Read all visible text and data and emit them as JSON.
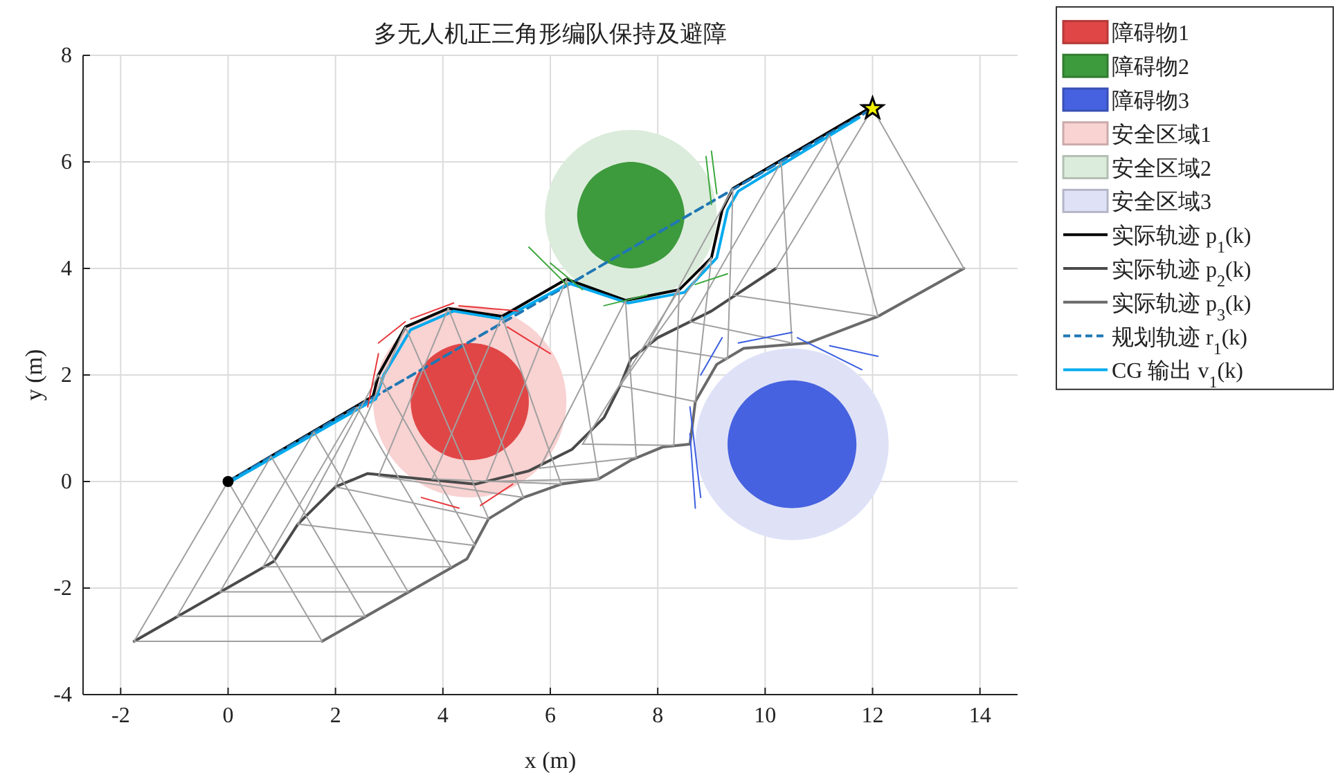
{
  "chart_data": {
    "type": "line",
    "title": "多无人机正三角形编队保持及避障",
    "xlabel": "x (m)",
    "ylabel": "y (m)",
    "xlim": [
      -2.7,
      14.7
    ],
    "ylim": [
      -4,
      8
    ],
    "xticks": [
      -2,
      0,
      2,
      4,
      6,
      8,
      10,
      12,
      14
    ],
    "yticks": [
      -4,
      -2,
      0,
      2,
      4,
      6,
      8
    ],
    "grid": true,
    "legend": "top right",
    "series": [
      {
        "name": "障碍物1",
        "type": "area",
        "color": "#e04646",
        "x": [
          5.6,
          5.52,
          5.28,
          4.92,
          4.5,
          4.08,
          3.72,
          3.48,
          3.4,
          3.48,
          3.72,
          4.08,
          4.5,
          4.92,
          5.28,
          5.52
        ],
        "values": [
          1.5,
          1.92,
          2.28,
          2.52,
          2.6,
          2.52,
          2.28,
          1.92,
          1.5,
          1.08,
          0.72,
          0.48,
          0.4,
          0.48,
          0.72,
          1.08
        ]
      },
      {
        "name": "障碍物2",
        "type": "area",
        "color": "#3d9a3d",
        "x": [
          8.5,
          8.42,
          8.21,
          7.88,
          7.5,
          7.12,
          6.79,
          6.58,
          6.5,
          6.58,
          6.79,
          7.12,
          7.5,
          7.88,
          8.21,
          8.42
        ],
        "values": [
          5,
          5.38,
          5.71,
          5.92,
          6,
          5.92,
          5.71,
          5.38,
          5,
          4.62,
          4.29,
          4.08,
          4,
          4.08,
          4.29,
          4.62
        ]
      },
      {
        "name": "障碍物3",
        "type": "area",
        "color": "#4662e0",
        "x": [
          11.7,
          11.61,
          11.35,
          10.96,
          10.5,
          10.04,
          9.65,
          9.39,
          9.3,
          9.39,
          9.65,
          10.04,
          10.5,
          10.96,
          11.35,
          11.61
        ],
        "values": [
          0.7,
          1.16,
          1.55,
          1.81,
          1.9,
          1.81,
          1.55,
          1.16,
          0.7,
          0.24,
          -0.15,
          -0.41,
          -0.5,
          -0.41,
          -0.15,
          0.24
        ]
      },
      {
        "name": "安全区域1",
        "type": "area",
        "color": "#f9d2d2",
        "x": [
          6.3,
          6.16,
          5.77,
          5.19,
          4.5,
          3.81,
          3.23,
          2.84,
          2.7,
          2.84,
          3.23,
          3.81,
          4.5,
          5.19,
          5.77,
          6.16
        ],
        "values": [
          1.5,
          2.19,
          2.77,
          3.16,
          3.3,
          3.16,
          2.77,
          2.19,
          1.5,
          0.81,
          0.23,
          -0.16,
          -0.3,
          -0.16,
          0.23,
          0.81
        ]
      },
      {
        "name": "安全区域2",
        "type": "area",
        "color": "#dcecdc",
        "x": [
          9.1,
          8.98,
          8.63,
          8.11,
          7.5,
          6.89,
          6.37,
          6.02,
          5.9,
          6.02,
          6.37,
          6.89,
          7.5,
          8.11,
          8.63,
          8.98
        ],
        "values": [
          5,
          5.61,
          6.13,
          6.48,
          6.6,
          6.48,
          6.13,
          5.61,
          5,
          4.39,
          3.87,
          3.52,
          3.4,
          3.52,
          3.87,
          4.39
        ]
      },
      {
        "name": "安全区域3",
        "type": "area",
        "color": "#dfe2f7",
        "x": [
          12.3,
          12.16,
          11.77,
          11.19,
          10.5,
          9.81,
          9.23,
          8.84,
          8.7,
          8.84,
          9.23,
          9.81,
          10.5,
          11.19,
          11.77,
          12.16
        ],
        "values": [
          0.7,
          1.39,
          1.97,
          2.36,
          2.5,
          2.36,
          1.97,
          1.39,
          0.7,
          0.01,
          -0.57,
          -0.96,
          -1.1,
          -0.96,
          -0.57,
          0.01
        ]
      },
      {
        "name": "实际轨迹 p$_{1}$(k)",
        "color": "#000000",
        "x": [
          0,
          2.7,
          2.8,
          3.3,
          4.1,
          5.1,
          6.3,
          7.4,
          8.4,
          9.0,
          9.2,
          9.4,
          11.93,
          12
        ],
        "values": [
          0,
          1.6,
          2.0,
          2.9,
          3.25,
          3.1,
          3.8,
          3.4,
          3.6,
          4.2,
          5.1,
          5.5,
          7.0,
          7
        ]
      },
      {
        "name": "实际轨迹 p$_{2}$(k)",
        "color": "#4a4a4a",
        "x": [
          -1.75,
          0.85,
          1.3,
          2.0,
          2.6,
          3.6,
          4.6,
          5.6,
          6.4,
          7.0,
          7.3,
          7.5,
          8.0,
          9.0,
          10.2
        ],
        "values": [
          -3,
          -1.5,
          -0.8,
          -0.1,
          0.15,
          0.05,
          -0.05,
          0.2,
          0.6,
          1.2,
          1.8,
          2.3,
          2.7,
          3.2,
          4.0
        ]
      },
      {
        "name": "实际轨迹 p$_{3}$(k)",
        "color": "#6a6a6a",
        "x": [
          1.75,
          4.45,
          4.85,
          5.5,
          6.2,
          6.9,
          7.5,
          8.1,
          8.6,
          8.7,
          9.1,
          9.6,
          10.8,
          12.1,
          13.7
        ],
        "values": [
          -3,
          -1.45,
          -0.7,
          -0.3,
          -0.05,
          0.05,
          0.4,
          0.65,
          0.7,
          1.5,
          2.2,
          2.5,
          2.6,
          3.1,
          4.0
        ]
      },
      {
        "name": "规划轨迹 r$_{1}$(k)",
        "line_style": "dashed",
        "color": "#1f77b4",
        "x": [
          0,
          12
        ],
        "values": [
          0,
          7
        ]
      },
      {
        "name": "CG 输出 v$_{1}$(k)",
        "color": "#00aaee",
        "x": [
          0,
          2.75,
          2.9,
          3.4,
          4.2,
          5.1,
          6.35,
          7.45,
          8.5,
          9.1,
          9.3,
          9.5,
          11.75
        ],
        "values": [
          -0.03,
          1.55,
          2.0,
          2.85,
          3.2,
          3.05,
          3.72,
          3.35,
          3.55,
          4.2,
          5.1,
          5.45,
          6.83
        ]
      },
      {
        "color": "#a0a0a0",
        "x": [
          -1.75,
          0,
          1.75
        ],
        "values": [
          -3,
          0,
          -3
        ]
      },
      {
        "color": "#a0a0a0",
        "x": [
          -1.75,
          1.75
        ],
        "values": [
          -3,
          -3
        ]
      },
      {
        "color": "#a0a0a0",
        "x": [
          -0.95,
          0.8,
          2.55
        ],
        "values": [
          -2.53,
          0.47,
          -2.53
        ]
      },
      {
        "color": "#a0a0a0",
        "x": [
          -0.95,
          2.55
        ],
        "values": [
          -2.53,
          -2.53
        ]
      },
      {
        "color": "#a0a0a0",
        "x": [
          -0.15,
          1.6,
          3.35
        ],
        "values": [
          -2.07,
          0.93,
          -2.07
        ]
      },
      {
        "color": "#a0a0a0",
        "x": [
          -0.15,
          3.35
        ],
        "values": [
          -2.07,
          -2.07
        ]
      },
      {
        "color": "#a0a0a0",
        "x": [
          0.65,
          2.4,
          4.15
        ],
        "values": [
          -1.6,
          1.4,
          -1.6
        ]
      },
      {
        "color": "#a0a0a0",
        "x": [
          0.65,
          4.15
        ],
        "values": [
          -1.6,
          -1.6
        ]
      },
      {
        "color": "#a0a0a0",
        "x": [
          1.3,
          2.8,
          4.6
        ],
        "values": [
          -0.8,
          2.0,
          -1.2
        ]
      },
      {
        "color": "#a0a0a0",
        "x": [
          1.3,
          4.6
        ],
        "values": [
          -0.8,
          -1.2
        ]
      },
      {
        "color": "#a0a0a0",
        "x": [
          2.0,
          3.3,
          4.85
        ],
        "values": [
          -0.1,
          2.9,
          -0.7
        ]
      },
      {
        "color": "#a0a0a0",
        "x": [
          2.0,
          4.85
        ],
        "values": [
          -0.1,
          -0.7
        ]
      },
      {
        "color": "#a0a0a0",
        "x": [
          2.8,
          4.1,
          5.5
        ],
        "values": [
          0.1,
          3.25,
          -0.3
        ]
      },
      {
        "color": "#a0a0a0",
        "x": [
          2.8,
          5.5
        ],
        "values": [
          0.1,
          -0.3
        ]
      },
      {
        "color": "#a0a0a0",
        "x": [
          3.8,
          5.1,
          6.2
        ],
        "values": [
          0.05,
          3.1,
          -0.05
        ]
      },
      {
        "color": "#a0a0a0",
        "x": [
          3.8,
          6.2
        ],
        "values": [
          0.05,
          -0.05
        ]
      },
      {
        "color": "#a0a0a0",
        "x": [
          4.8,
          6.3,
          6.9
        ],
        "values": [
          0.0,
          3.8,
          0.05
        ]
      },
      {
        "color": "#a0a0a0",
        "x": [
          4.8,
          6.9
        ],
        "values": [
          0.0,
          0.05
        ]
      },
      {
        "color": "#a0a0a0",
        "x": [
          5.8,
          7.4,
          7.6
        ],
        "values": [
          0.25,
          3.4,
          0.45
        ]
      },
      {
        "color": "#a0a0a0",
        "x": [
          5.8,
          7.6
        ],
        "values": [
          0.25,
          0.45
        ]
      },
      {
        "color": "#a0a0a0",
        "x": [
          6.6,
          8.4,
          8.3
        ],
        "values": [
          0.7,
          3.6,
          0.68
        ]
      },
      {
        "color": "#a0a0a0",
        "x": [
          6.6,
          8.3
        ],
        "values": [
          0.7,
          0.68
        ]
      },
      {
        "color": "#a0a0a0",
        "x": [
          7.3,
          9.0,
          8.7
        ],
        "values": [
          1.8,
          4.2,
          1.5
        ]
      },
      {
        "color": "#a0a0a0",
        "x": [
          7.3,
          8.7
        ],
        "values": [
          1.8,
          1.5
        ]
      },
      {
        "color": "#a0a0a0",
        "x": [
          7.8,
          9.4,
          9.3
        ],
        "values": [
          2.55,
          5.5,
          2.3
        ]
      },
      {
        "color": "#a0a0a0",
        "x": [
          7.8,
          9.3
        ],
        "values": [
          2.55,
          2.3
        ]
      },
      {
        "color": "#a0a0a0",
        "x": [
          8.6,
          10.3,
          10.5
        ],
        "values": [
          3.0,
          6.0,
          2.6
        ]
      },
      {
        "color": "#a0a0a0",
        "x": [
          8.6,
          10.5
        ],
        "values": [
          3.0,
          2.6
        ]
      },
      {
        "color": "#a0a0a0",
        "x": [
          9.4,
          11.2,
          12.1
        ],
        "values": [
          3.5,
          6.5,
          3.1
        ]
      },
      {
        "color": "#a0a0a0",
        "x": [
          9.4,
          12.1
        ],
        "values": [
          3.5,
          3.1
        ]
      },
      {
        "color": "#a0a0a0",
        "x": [
          10.2,
          12,
          13.7
        ],
        "values": [
          4.0,
          7,
          4.0
        ]
      },
      {
        "color": "#a0a0a0",
        "x": [
          10.2,
          13.7
        ],
        "values": [
          4.0,
          4.0
        ]
      },
      {
        "color": "#e8383c",
        "x": [
          2.6,
          2.8
        ],
        "values": [
          1.4,
          2.4
        ]
      },
      {
        "color": "#e8383c",
        "x": [
          2.8,
          3.3
        ],
        "values": [
          2.6,
          3.0
        ]
      },
      {
        "color": "#e8383c",
        "x": [
          3.4,
          4.2
        ],
        "values": [
          3.05,
          3.35
        ]
      },
      {
        "color": "#e8383c",
        "x": [
          4.3,
          5.4
        ],
        "values": [
          3.3,
          3.2
        ]
      },
      {
        "color": "#e8383c",
        "x": [
          5.2,
          6.0
        ],
        "values": [
          2.9,
          2.4
        ]
      },
      {
        "color": "#e8383c",
        "x": [
          3.6,
          4.3
        ],
        "values": [
          -0.3,
          -0.5
        ]
      },
      {
        "color": "#e8383c",
        "x": [
          4.7,
          5.3
        ],
        "values": [
          -0.45,
          -0.05
        ]
      },
      {
        "color": "#3ea83e",
        "x": [
          5.6,
          6.3
        ],
        "values": [
          4.4,
          3.7
        ]
      },
      {
        "color": "#3ea83e",
        "x": [
          6.0,
          6.6
        ],
        "values": [
          4.1,
          3.6
        ]
      },
      {
        "color": "#3ea83e",
        "x": [
          7.0,
          7.8
        ],
        "values": [
          3.3,
          3.5
        ]
      },
      {
        "color": "#3ea83e",
        "x": [
          8.7,
          9.3
        ],
        "values": [
          3.7,
          3.9
        ]
      },
      {
        "color": "#3ea83e",
        "x": [
          9.0,
          8.9
        ],
        "values": [
          5.2,
          6.1
        ]
      },
      {
        "color": "#3ea83e",
        "x": [
          9.1,
          9.0
        ],
        "values": [
          5.4,
          6.2
        ]
      },
      {
        "color": "#3c5ee0",
        "x": [
          8.6,
          8.7
        ],
        "values": [
          0.9,
          -0.5
        ]
      },
      {
        "color": "#3c5ee0",
        "x": [
          8.6,
          8.8
        ],
        "values": [
          1.4,
          -0.3
        ]
      },
      {
        "color": "#3c5ee0",
        "x": [
          8.8,
          9.2
        ],
        "values": [
          2.0,
          2.7
        ]
      },
      {
        "color": "#3c5ee0",
        "x": [
          9.5,
          10.5
        ],
        "values": [
          2.6,
          2.8
        ]
      },
      {
        "color": "#3c5ee0",
        "x": [
          10.6,
          11.8
        ],
        "values": [
          2.7,
          2.1
        ]
      },
      {
        "color": "#3c5ee0",
        "x": [
          11.2,
          12.1
        ],
        "values": [
          2.55,
          2.35
        ]
      },
      {
        "type": "scatter",
        "marker": "circle",
        "color": "#000000",
        "x": [
          0
        ],
        "values": [
          0
        ]
      },
      {
        "type": "scatter",
        "marker": "star",
        "color": "#f0f000",
        "x": [
          12
        ],
        "values": [
          7
        ]
      }
    ]
  }
}
